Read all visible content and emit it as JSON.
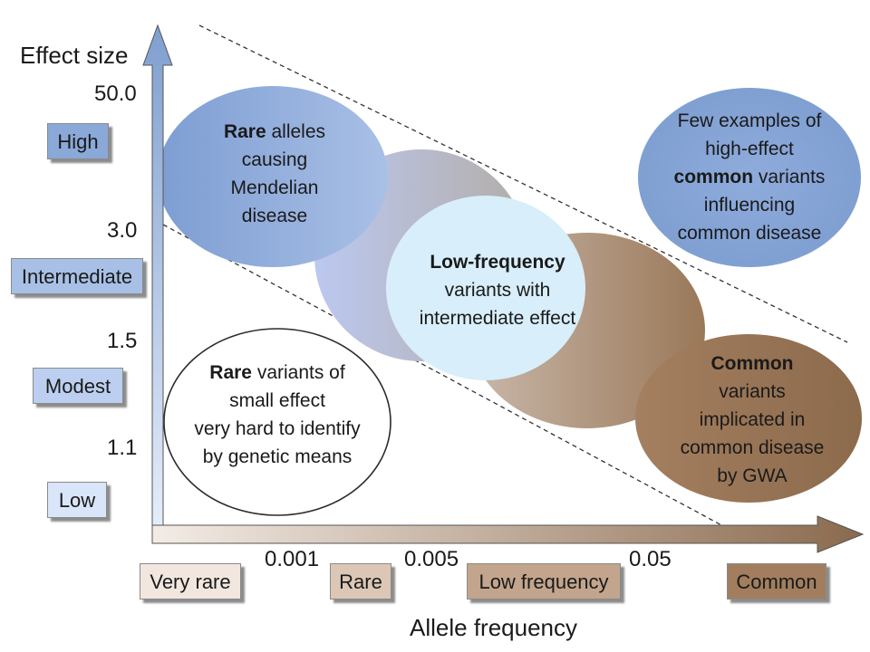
{
  "axes": {
    "y_title": "Effect size",
    "x_title": "Allele frequency",
    "y_ticks": [
      "50.0",
      "3.0",
      "1.5",
      "1.1"
    ],
    "x_ticks": [
      "0.001",
      "0.005",
      "0.05"
    ]
  },
  "y_categories": [
    "High",
    "Intermediate",
    "Modest",
    "Low"
  ],
  "x_categories": [
    "Very rare",
    "Rare",
    "Low frequency",
    "Common"
  ],
  "regions": {
    "rare_mendelian": {
      "bold": "Rare",
      "rest1": " alleles",
      "l2": "causing",
      "l3": "Mendelian",
      "l4": "disease"
    },
    "low_frequency": {
      "bold": "Low-frequency",
      "l2": "variants with",
      "l3": "intermediate effect"
    },
    "few_examples": {
      "l1": "Few examples of",
      "l2": "high-effect",
      "bold": "common",
      "rest3": " variants",
      "l4": "influencing",
      "l5": "common disease"
    },
    "rare_small": {
      "bold": "Rare",
      "rest1": " variants of",
      "l2": "small effect",
      "l3": "very hard to identify",
      "l4": "by genetic means"
    },
    "common_gwa": {
      "bold": "Common",
      "l2": "variants",
      "l3": "implicated in",
      "l4": "common disease",
      "l5": "by GWA"
    }
  },
  "colors": {
    "blue": "#7f9fd0",
    "light_blue": "#d8eefa",
    "brown": "#9a7a5c",
    "outline": "#2b2b2b"
  }
}
